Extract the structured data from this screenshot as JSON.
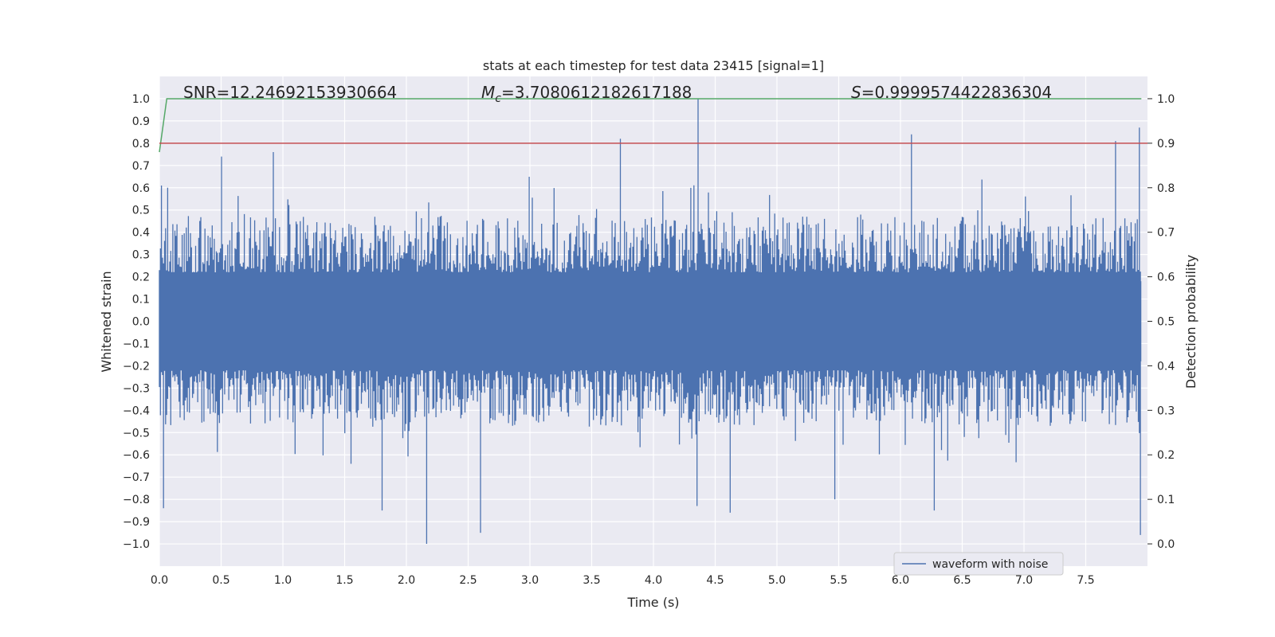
{
  "chart_data": {
    "type": "line",
    "title": "stats at each timestep for test data 23415 [signal=1]",
    "xlabel": "Time (s)",
    "ylabel": "Whitened strain",
    "y2label": "Detection probability",
    "xlim": [
      0,
      8
    ],
    "ylim": [
      -1.1,
      1.1
    ],
    "y2lim": [
      -0.05,
      1.05
    ],
    "xticks": [
      "0.0",
      "0.5",
      "1.0",
      "1.5",
      "2.0",
      "2.5",
      "3.0",
      "3.5",
      "4.0",
      "4.5",
      "5.0",
      "5.5",
      "6.0",
      "6.5",
      "7.0",
      "7.5"
    ],
    "yticks": [
      "1.0",
      "0.9",
      "0.8",
      "0.7",
      "0.6",
      "0.5",
      "0.4",
      "0.3",
      "0.2",
      "0.1",
      "0.0",
      "−0.1",
      "−0.2",
      "−0.3",
      "−0.4",
      "−0.5",
      "−0.6",
      "−0.7",
      "−0.8",
      "−0.9",
      "−1.0"
    ],
    "y2ticks": [
      "1.0",
      "0.9",
      "0.8",
      "0.7",
      "0.6",
      "0.5",
      "0.4",
      "0.3",
      "0.2",
      "0.1",
      "0.0"
    ],
    "grid": true,
    "legend_position": "lower-right",
    "annotations": {
      "snr": "SNR=12.24692153930664",
      "mc_prefix": "M",
      "mc_sub": "c",
      "mc_value": "=3.7080612182617188",
      "s_prefix": "S",
      "s_value": "=0.9999574422836304"
    },
    "series": [
      {
        "name": "waveform with noise",
        "color": "#4c72b0",
        "description_of_envelope": "dense noise spanning about -0.45 to 0.45 with spikes",
        "peaks": [
          {
            "x": 0.02,
            "y": 0.61
          },
          {
            "x": 0.07,
            "y": 0.6
          },
          {
            "x": 0.5,
            "y": 0.74
          },
          {
            "x": 0.92,
            "y": 0.76
          },
          {
            "x": 3.73,
            "y": 0.82
          },
          {
            "x": 4.36,
            "y": 1.0
          },
          {
            "x": 6.09,
            "y": 0.84
          },
          {
            "x": 7.93,
            "y": 0.87
          },
          {
            "x": 7.74,
            "y": 0.81
          }
        ],
        "troughs": [
          {
            "x": 0.03,
            "y": -0.84
          },
          {
            "x": 1.8,
            "y": -0.85
          },
          {
            "x": 2.16,
            "y": -1.0
          },
          {
            "x": 2.6,
            "y": -0.95
          },
          {
            "x": 4.35,
            "y": -0.83
          },
          {
            "x": 4.62,
            "y": -0.86
          },
          {
            "x": 6.27,
            "y": -0.85
          },
          {
            "x": 7.94,
            "y": -0.96
          },
          {
            "x": 5.47,
            "y": -0.8
          }
        ]
      },
      {
        "name": "",
        "color": "#55a868",
        "axis": "right",
        "x": [
          0.0,
          0.06,
          7.95
        ],
        "y": [
          0.88,
          1.0,
          1.0
        ]
      },
      {
        "name": "",
        "color": "#c44e52",
        "axis": "right",
        "x": [
          0.0,
          8.0
        ],
        "y": [
          0.9,
          0.9
        ]
      }
    ]
  }
}
